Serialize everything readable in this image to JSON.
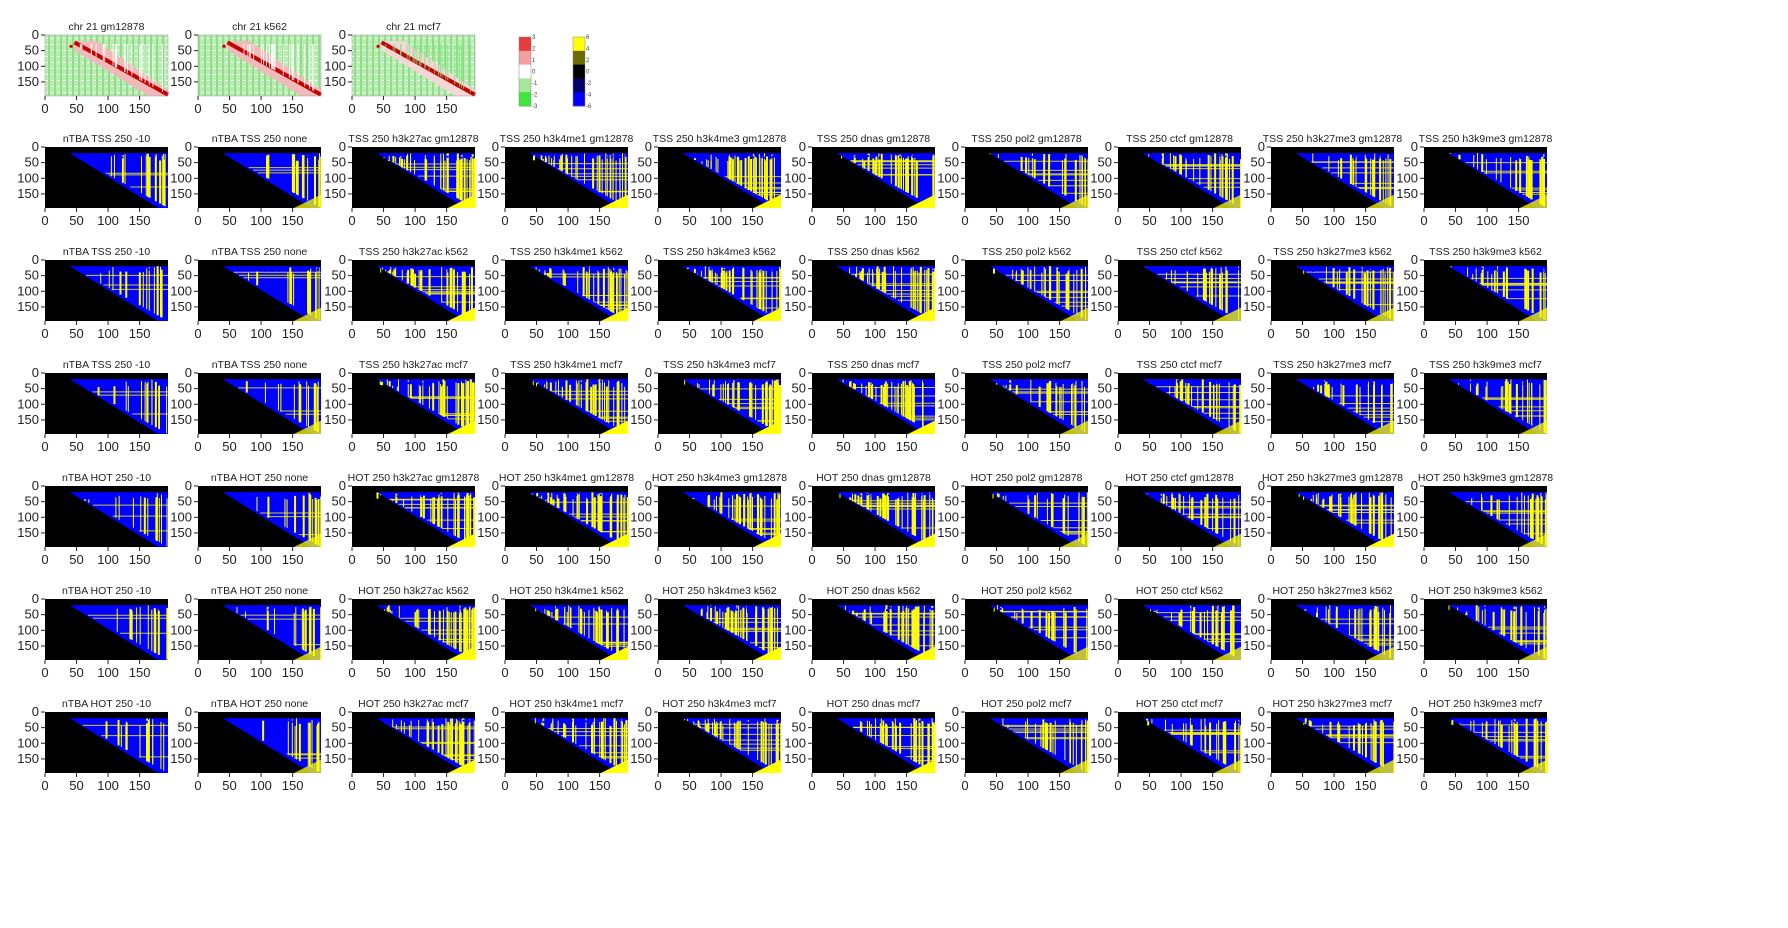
{
  "figure": {
    "top_row": [
      {
        "title": "chr 21 gm12878",
        "cmap": "rwg"
      },
      {
        "title": "chr 21 k562",
        "cmap": "rwg"
      },
      {
        "title": "chr 21 mcf7",
        "cmap": "rwg"
      }
    ],
    "grid_titles": [
      [
        "nTBA TSS 250 -10",
        "nTBA TSS 250 none",
        "TSS 250 h3k27ac gm12878",
        "TSS 250 h3k4me1 gm12878",
        "TSS 250 h3k4me3 gm12878",
        "TSS 250 dnas gm12878",
        "TSS 250 pol2 gm12878",
        "TSS 250 ctcf gm12878",
        "TSS 250 h3k27me3 gm12878",
        "TSS 250 h3k9me3 gm12878"
      ],
      [
        "nTBA TSS 250 -10",
        "nTBA TSS 250 none",
        "TSS 250 h3k27ac k562",
        "TSS 250 h3k4me1 k562",
        "TSS 250 h3k4me3 k562",
        "TSS 250 dnas k562",
        "TSS 250 pol2 k562",
        "TSS 250 ctcf k562",
        "TSS 250 h3k27me3 k562",
        "TSS 250 h3k9me3 k562"
      ],
      [
        "nTBA TSS 250 -10",
        "nTBA TSS 250 none",
        "TSS 250 h3k27ac mcf7",
        "TSS 250 h3k4me1 mcf7",
        "TSS 250 h3k4me3 mcf7",
        "TSS 250 dnas mcf7",
        "TSS 250 pol2 mcf7",
        "TSS 250 ctcf mcf7",
        "TSS 250 h3k27me3 mcf7",
        "TSS 250 h3k9me3 mcf7"
      ],
      [
        "nTBA HOT 250 -10",
        "nTBA HOT 250 none",
        "HOT 250 h3k27ac gm12878",
        "HOT 250 h3k4me1 gm12878",
        "HOT 250 h3k4me3 gm12878",
        "HOT 250 dnas gm12878",
        "HOT 250 pol2 gm12878",
        "HOT 250 ctcf gm12878",
        "HOT 250 h3k27me3 gm12878",
        "HOT 250 h3k9me3 gm12878"
      ],
      [
        "nTBA HOT 250 -10",
        "nTBA HOT 250 none",
        "HOT 250 h3k27ac k562",
        "HOT 250 h3k4me1 k562",
        "HOT 250 h3k4me3 k562",
        "HOT 250 dnas k562",
        "HOT 250 pol2 k562",
        "HOT 250 ctcf k562",
        "HOT 250 h3k27me3 k562",
        "HOT 250 h3k9me3 k562"
      ],
      [
        "nTBA HOT 250 -10",
        "nTBA HOT 250 none",
        "HOT 250 h3k27ac mcf7",
        "HOT 250 h3k4me1 mcf7",
        "HOT 250 h3k4me3 mcf7",
        "HOT 250 dnas mcf7",
        "HOT 250 pol2 mcf7",
        "HOT 250 ctcf mcf7",
        "HOT 250 h3k27me3 mcf7",
        "HOT 250 h3k9me3 mcf7"
      ]
    ],
    "colorbars": [
      {
        "ticks": [
          "3",
          "2",
          "1",
          "0",
          "-1",
          "-2",
          "-3"
        ],
        "colors": [
          "#e83b3b",
          "#f2a0a0",
          "#ffffff",
          "#a6e89a",
          "#3ee63e"
        ]
      },
      {
        "ticks": [
          "6",
          "4",
          "2",
          "0",
          "-2",
          "-4",
          "-6"
        ],
        "colors": [
          "#ffff00",
          "#6b6b00",
          "#000000",
          "#000066",
          "#0000ff"
        ]
      }
    ]
  },
  "chart_data": {
    "type": "heatmap",
    "description_of_panels": "63 heatmaps: 3 correlation-style maps (top row) and a 6x10 grid of triangular maps",
    "xticks": [
      0,
      50,
      100,
      150
    ],
    "yticks": [
      0,
      50,
      100,
      150
    ],
    "xlim": [
      0,
      195
    ],
    "ylim": [
      195,
      0
    ],
    "colorbar_rwg": {
      "range": [
        -3,
        3
      ],
      "ticks": [
        3,
        2,
        1,
        0,
        -1,
        -2,
        -3
      ]
    },
    "colorbar_byb": {
      "range": [
        -6,
        6
      ],
      "ticks": [
        6,
        4,
        2,
        0,
        -2,
        -4,
        -6
      ]
    },
    "colors": {
      "blue": "#0000ff",
      "yellow": "#ffff00",
      "black": "#000000",
      "red": "#cc0000",
      "green": "#3ee63e"
    }
  }
}
